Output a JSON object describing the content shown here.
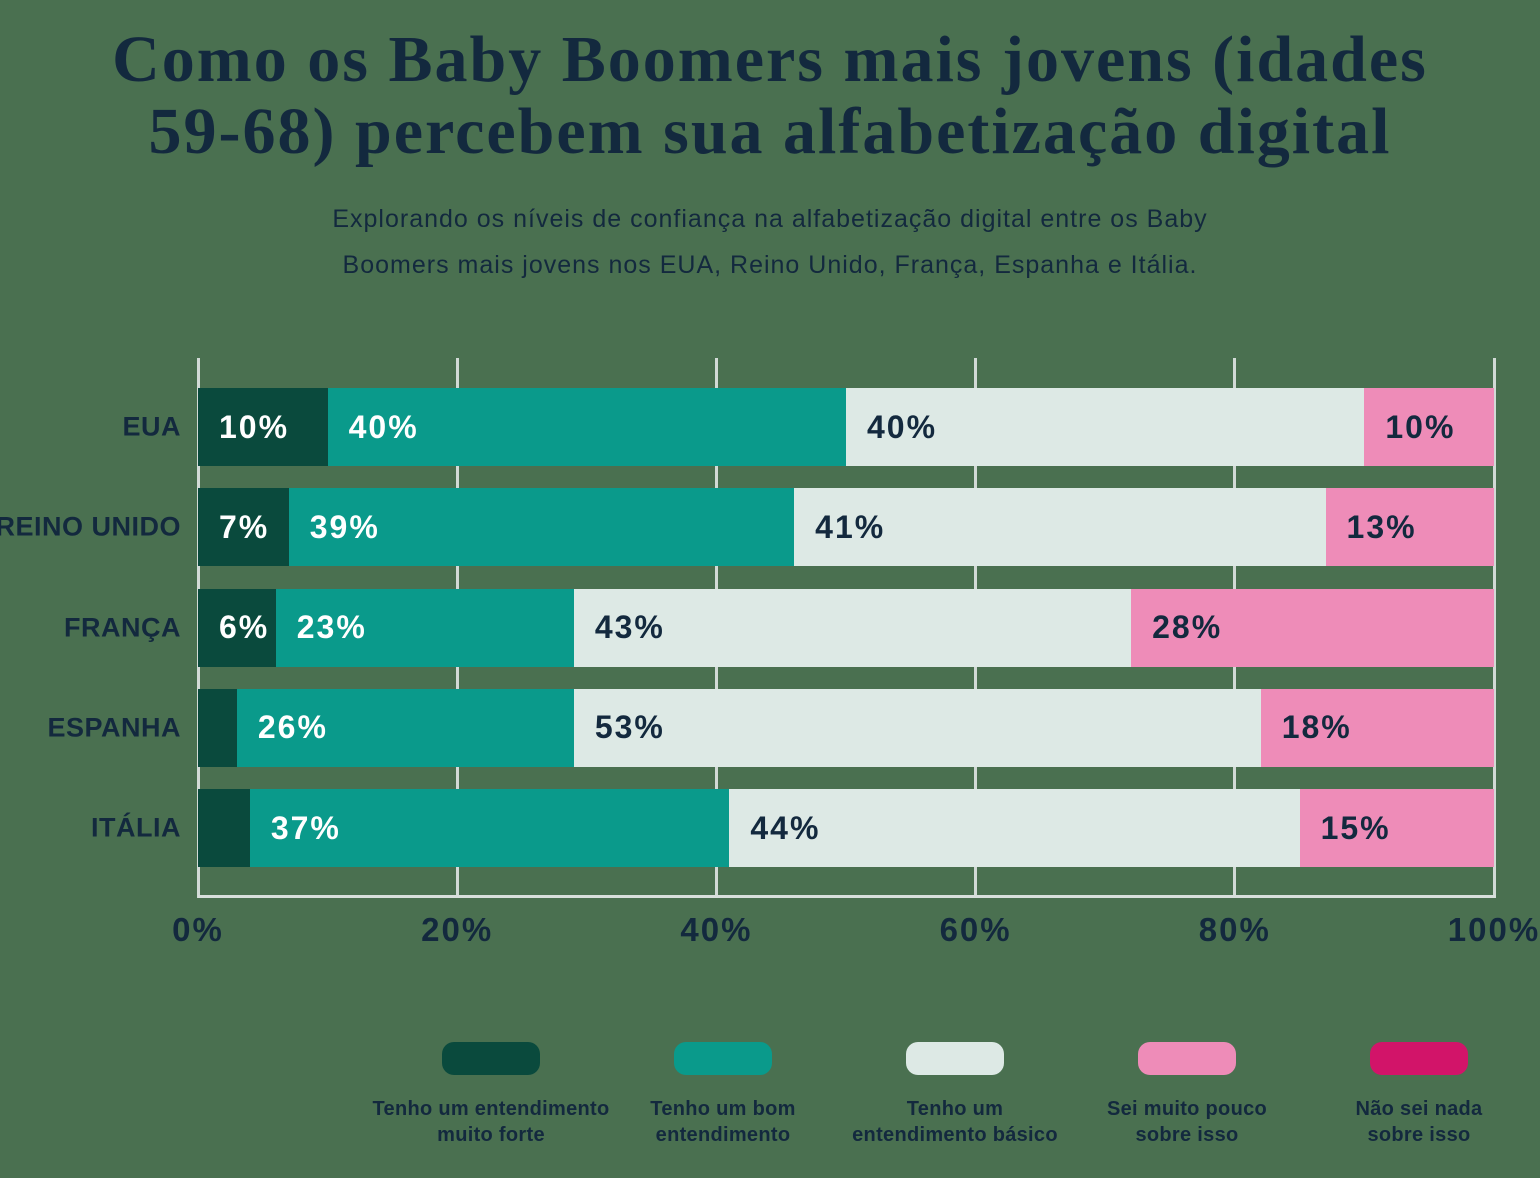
{
  "header": {
    "title_lines": [
      "Como os Baby Boomers mais jovens (idades",
      "59-68) percebem sua alfabetização digital"
    ],
    "subtitle_lines": [
      "Explorando os níveis de confiança na alfabetização digital entre os Baby",
      "Boomers mais jovens nos EUA, Reino Unido, França, Espanha e Itália."
    ]
  },
  "chart_data": {
    "type": "bar",
    "orientation": "horizontal",
    "stacked": true,
    "title": "Como os Baby Boomers mais jovens (idades 59-68) percebem sua alfabetização digital",
    "subtitle": "Explorando os níveis de confiança na alfabetização digital entre os Baby Boomers mais jovens nos EUA, Reino Unido, França, Espanha e Itália.",
    "categories": [
      "EUA",
      "REINO UNIDO",
      "FRANÇA",
      "ESPANHA",
      "ITÁLIA"
    ],
    "series": [
      {
        "name": "Tenho um entendimento muito forte",
        "label_lines": [
          "Tenho um entendimento",
          "muito forte"
        ],
        "color": "#0a4a3d",
        "label_color": "#ffffff",
        "values": [
          10,
          7,
          6,
          3,
          4
        ],
        "labels": [
          "10%",
          "7%",
          "6%",
          "",
          ""
        ]
      },
      {
        "name": "Tenho um bom entendimento",
        "label_lines": [
          "Tenho um bom",
          "entendimento"
        ],
        "color": "#0a9a8b",
        "label_color": "#ffffff",
        "values": [
          40,
          39,
          23,
          26,
          37
        ],
        "labels": [
          "40%",
          "39%",
          "23%",
          "26%",
          "37%"
        ]
      },
      {
        "name": "Tenho um entendimento básico",
        "label_lines": [
          "Tenho um",
          "entendimento básico"
        ],
        "color": "#dde9e5",
        "label_color": "#13293e",
        "values": [
          40,
          41,
          43,
          53,
          44
        ],
        "labels": [
          "40%",
          "41%",
          "43%",
          "53%",
          "44%"
        ]
      },
      {
        "name": "Sei muito pouco sobre isso",
        "label_lines": [
          "Sei muito pouco",
          "sobre isso"
        ],
        "color": "#ee8cb8",
        "label_color": "#13293e",
        "values": [
          10,
          13,
          28,
          18,
          15
        ],
        "labels": [
          "10%",
          "13%",
          "28%",
          "18%",
          "15%"
        ]
      },
      {
        "name": "Não sei nada sobre isso",
        "label_lines": [
          "Não sei nada",
          "sobre isso"
        ],
        "color": "#d21469",
        "label_color": "#ffffff",
        "values": [
          0,
          0,
          0,
          0,
          0
        ],
        "labels": [
          "",
          "",
          "",
          "",
          ""
        ]
      }
    ],
    "x_ticks": [
      "0%",
      "20%",
      "40%",
      "60%",
      "80%",
      "100%"
    ],
    "xlim": [
      0,
      100
    ],
    "grid": true,
    "legend_position": "bottom"
  },
  "colors": {
    "background": "#4a7050",
    "text": "#13293e",
    "grid": "#d2dad6"
  }
}
